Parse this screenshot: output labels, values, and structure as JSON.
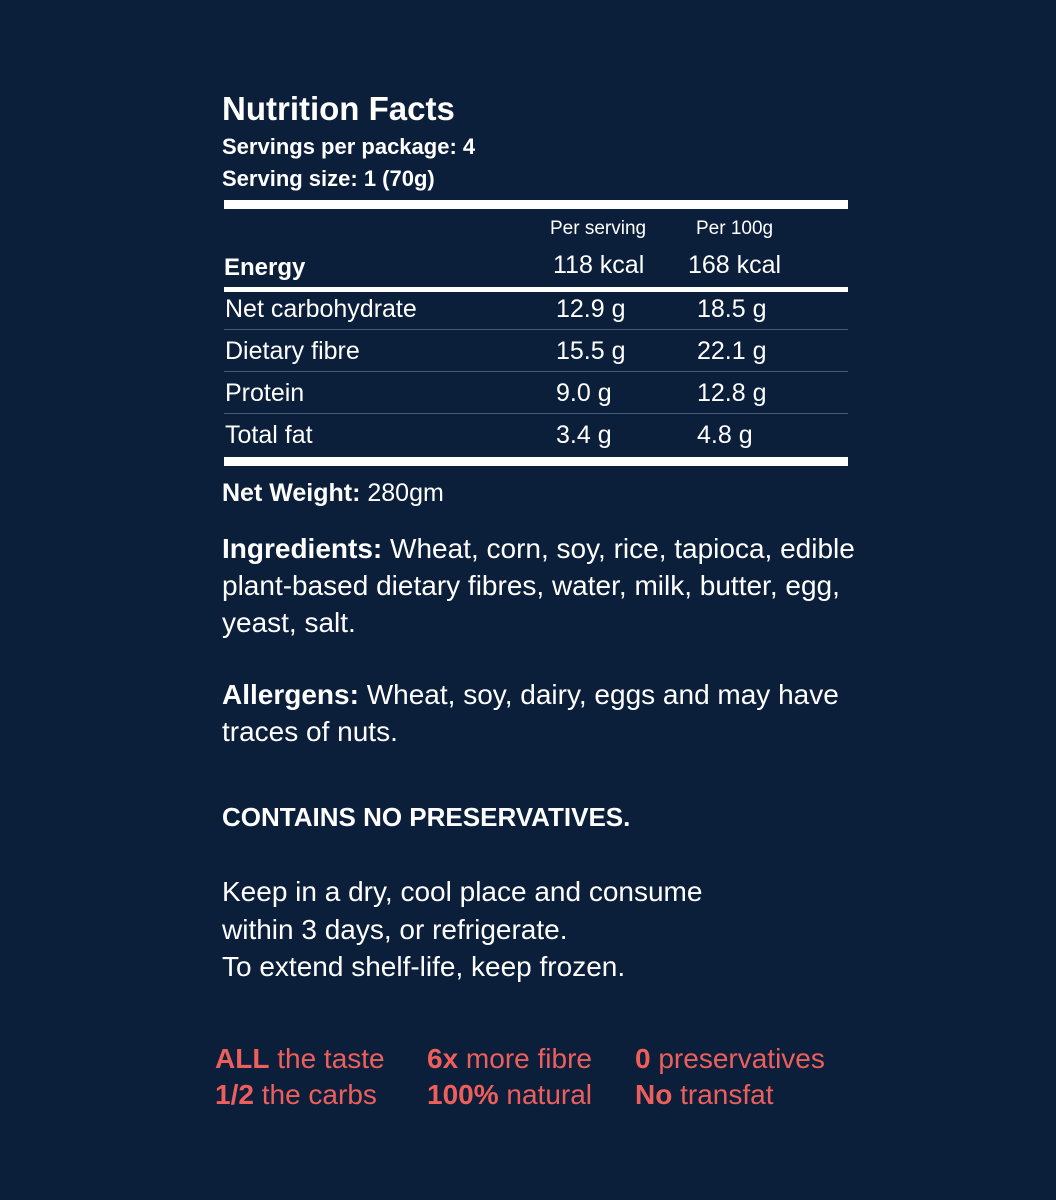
{
  "title": "Nutrition Facts",
  "servings_per_package": "Servings per package: 4",
  "serving_size": "Serving size: 1  (70g)",
  "columns": [
    "Per serving",
    "Per 100g"
  ],
  "energy": {
    "label": "Energy",
    "per_serving": "118 kcal",
    "per_100g": "168 kcal"
  },
  "rows": [
    {
      "label": "Net carbohydrate",
      "per_serving": "12.9 g",
      "per_100g": "18.5 g"
    },
    {
      "label": "Dietary fibre",
      "per_serving": "15.5 g",
      "per_100g": "22.1 g"
    },
    {
      "label": "Protein",
      "per_serving": "9.0 g",
      "per_100g": "12.8 g"
    },
    {
      "label": "Total fat",
      "per_serving": "3.4 g",
      "per_100g": "4.8 g"
    }
  ],
  "net_weight": {
    "label": "Net Weight:",
    "value": " 280gm"
  },
  "ingredients": {
    "label": "Ingredients:",
    "value": " Wheat, corn, soy, rice, tapioca, edible plant-based dietary fibres, water, milk, butter, egg, yeast, salt."
  },
  "allergens": {
    "label": "Allergens:",
    "value": " Wheat, soy, dairy, eggs and may have traces of nuts."
  },
  "preservatives_notice": "CONTAINS NO PRESERVATIVES.",
  "storage": [
    "Keep in a dry, cool place and consume",
    "within 3 days, or refrigerate.",
    "To extend shelf-life, keep frozen."
  ],
  "taglines": [
    {
      "bold": "ALL",
      "text": " the taste"
    },
    {
      "bold": "6x",
      "text": " more fibre"
    },
    {
      "bold": "0",
      "text": " preservatives"
    },
    {
      "bold": "1/2",
      "text": " the carbs"
    },
    {
      "bold": "100%",
      "text": " natural"
    },
    {
      "bold": "No",
      "text": " transfat"
    }
  ],
  "colors": {
    "background": "#0b1f3b",
    "accent": "#ee5f5c",
    "text": "#ffffff"
  }
}
